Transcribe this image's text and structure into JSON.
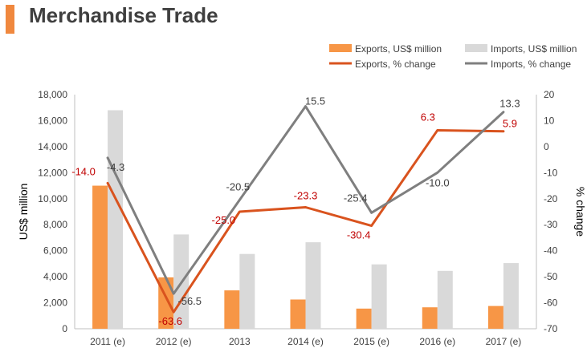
{
  "title": "Merchandise Trade",
  "colors": {
    "title_accent": "#f0883e",
    "exports_bar": "#f79646",
    "imports_bar": "#d9d9d9",
    "exports_line": "#d9531e",
    "imports_line": "#7f7f7f",
    "exports_label": "#c00000",
    "imports_label": "#404040"
  },
  "chart_data": {
    "type": "bar+line",
    "categories": [
      "2011 (e)",
      "2012 (e)",
      "2013",
      "2014 (e)",
      "2015 (e)",
      "2016 (e)",
      "2017 (e)"
    ],
    "bar_series": [
      {
        "name": "Exports, US$ million",
        "values": [
          11000,
          3950,
          2950,
          2250,
          1550,
          1650,
          1750
        ]
      },
      {
        "name": "Imports, US$ million",
        "values": [
          16800,
          7250,
          5750,
          6650,
          4950,
          4450,
          5050
        ]
      }
    ],
    "line_series": [
      {
        "name": "Exports, % change",
        "values": [
          -14.0,
          -63.6,
          -25.0,
          -23.3,
          -30.4,
          6.3,
          5.9
        ]
      },
      {
        "name": "Imports, % change",
        "values": [
          -4.3,
          -56.5,
          -20.5,
          15.5,
          -25.4,
          -10.0,
          13.3
        ]
      }
    ],
    "data_labels": {
      "exports": [
        "-14.0",
        "-63.6",
        "-25.0",
        "-23.3",
        "-30.4",
        "6.3",
        "5.9"
      ],
      "imports": [
        "-4.3",
        "-56.5",
        "-20.5",
        "15.5",
        "-25.4",
        "-10.0",
        "13.3"
      ]
    },
    "ylabel_left": "US$ million",
    "ylabel_right": "% change",
    "ylim_left": [
      0,
      18000
    ],
    "ylim_right": [
      -70,
      20
    ],
    "yticks_left": [
      "0",
      "2,000",
      "4,000",
      "6,000",
      "8,000",
      "10,000",
      "12,000",
      "14,000",
      "16,000",
      "18,000"
    ],
    "yticks_right": [
      "-70",
      "-60",
      "-50",
      "-40",
      "-30",
      "-20",
      "-10",
      "0",
      "10",
      "20"
    ],
    "legend_position": "top-right",
    "grid": false
  }
}
